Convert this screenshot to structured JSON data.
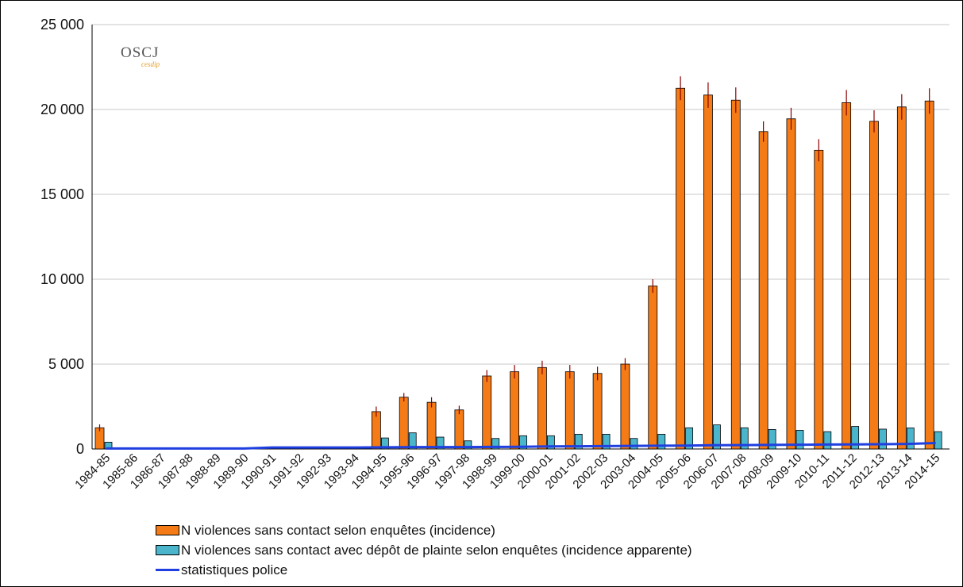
{
  "logo": {
    "text": "OSCJ",
    "subtext": "cesdip"
  },
  "colors": {
    "orange": "#f47b16",
    "blue": "#4bb5cc",
    "line": "#1f3fe0",
    "error": "#8b0000",
    "grid": "#c8c8c8"
  },
  "chart_data": {
    "type": "bar",
    "categories": [
      "1984-85",
      "1985-86",
      "1986-87",
      "1987-88",
      "1988-89",
      "1989-90",
      "1990-91",
      "1991-92",
      "1992-93",
      "1993-94",
      "1994-95",
      "1995-96",
      "1996-97",
      "1997-98",
      "1998-99",
      "1999-00",
      "2000-01",
      "2001-02",
      "2002-03",
      "2003-04",
      "2004-05",
      "2005-06",
      "2006-07",
      "2007-08",
      "2008-09",
      "2009-10",
      "2010-11",
      "2011-12",
      "2012-13",
      "2013-14",
      "2014-15"
    ],
    "ylim": [
      0,
      25000
    ],
    "yticks": [
      0,
      5000,
      10000,
      15000,
      20000,
      25000
    ],
    "ytick_labels": [
      "0",
      "5 000",
      "10 000",
      "15 000",
      "20 000",
      "25 000"
    ],
    "grid": true,
    "legend_position": "bottom",
    "series": [
      {
        "name": "N violences sans contact selon enquêtes (incidence)",
        "kind": "bar",
        "color": "#f47b16",
        "values": [
          1250,
          null,
          null,
          null,
          null,
          null,
          null,
          null,
          null,
          null,
          2200,
          3050,
          2750,
          2300,
          4300,
          4550,
          4800,
          4550,
          4450,
          5000,
          9600,
          21250,
          20850,
          20550,
          18700,
          19450,
          17600,
          20400,
          19300,
          20150,
          20500
        ],
        "error": [
          200,
          null,
          null,
          null,
          null,
          null,
          null,
          null,
          null,
          null,
          300,
          250,
          300,
          250,
          350,
          400,
          400,
          400,
          400,
          350,
          400,
          700,
          750,
          750,
          600,
          650,
          650,
          750,
          650,
          750,
          750
        ]
      },
      {
        "name": "N violences sans contact avec dépôt de plainte selon enquêtes (incidence apparente)",
        "kind": "bar",
        "color": "#4bb5cc",
        "values": [
          400,
          null,
          null,
          null,
          null,
          null,
          null,
          null,
          null,
          null,
          650,
          950,
          700,
          480,
          620,
          780,
          780,
          870,
          870,
          620,
          870,
          1250,
          1420,
          1250,
          1150,
          1100,
          1020,
          1330,
          1170,
          1240,
          1020
        ]
      },
      {
        "name": "statistiques police",
        "kind": "line",
        "color": "#1f3fe0",
        "values": [
          30,
          30,
          30,
          30,
          30,
          30,
          90,
          90,
          90,
          90,
          100,
          110,
          110,
          110,
          120,
          130,
          150,
          160,
          170,
          180,
          190,
          200,
          220,
          230,
          240,
          250,
          260,
          270,
          280,
          300,
          350
        ]
      }
    ]
  }
}
